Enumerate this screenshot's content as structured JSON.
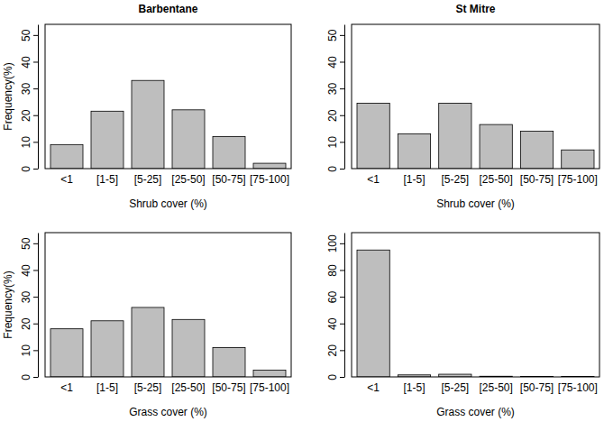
{
  "chart_data": [
    {
      "type": "bar",
      "title": "Barbentane",
      "x_label": "Shrub cover (%)",
      "y_label": "Frequency(%)",
      "categories": [
        "<1",
        "[1-5]",
        "[5-25]",
        "[25-50]",
        "[50-75]",
        "[75-100]"
      ],
      "values": [
        9,
        21.5,
        33,
        22,
        12,
        2
      ],
      "color": "#bebebe",
      "ylim": [
        0,
        54
      ],
      "yticks": [
        0,
        10,
        20,
        30,
        40,
        50
      ]
    },
    {
      "type": "bar",
      "title": "St Mitre",
      "x_label": "Shrub cover (%)",
      "categories": [
        "<1",
        "[1-5]",
        "[5-25]",
        "[25-50]",
        "[50-75]",
        "[75-100]"
      ],
      "values": [
        24.5,
        13,
        24.5,
        16.5,
        14,
        7
      ],
      "color": "#bebebe",
      "ylim": [
        0,
        54
      ],
      "yticks": [
        0,
        10,
        20,
        30,
        40,
        50
      ]
    },
    {
      "type": "bar",
      "x_label": "Grass cover (%)",
      "y_label": "Frequency(%)",
      "categories": [
        "<1",
        "[1-5]",
        "[5-25]",
        "[25-50]",
        "[50-75]",
        "[75-100]"
      ],
      "values": [
        18,
        21,
        26,
        21.5,
        11,
        2.5
      ],
      "color": "#bebebe",
      "ylim": [
        0,
        54
      ],
      "yticks": [
        0,
        10,
        20,
        30,
        40,
        50
      ]
    },
    {
      "type": "bar",
      "x_label": "Grass cover (%)",
      "categories": [
        "<1",
        "[1-5]",
        "[5-25]",
        "[25-50]",
        "[50-75]",
        "[75-100]"
      ],
      "values": [
        95,
        1.5,
        2,
        0.5,
        0.3,
        0.3
      ],
      "color": "#bebebe",
      "ylim": [
        0,
        108
      ],
      "yticks": [
        0,
        20,
        40,
        60,
        80,
        100
      ]
    }
  ]
}
